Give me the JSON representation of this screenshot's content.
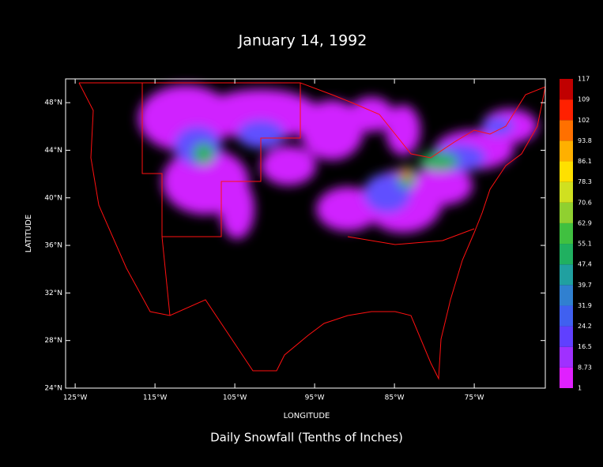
{
  "map": {
    "title": "January 14, 1992",
    "subtitle": "Daily Snowfall (Tenths of Inches)",
    "x_label": "LONGITUDE",
    "y_label": "LATITUDE",
    "xlim": [
      -126.2,
      -66.1
    ],
    "ylim": [
      24,
      50
    ],
    "xticks": [
      {
        "value": -125,
        "label": "125°W"
      },
      {
        "value": -115,
        "label": "115°W"
      },
      {
        "value": -105,
        "label": "105°W"
      },
      {
        "value": -95,
        "label": "95°W"
      },
      {
        "value": -85,
        "label": "85°W"
      },
      {
        "value": -75,
        "label": "75°W"
      }
    ],
    "yticks": [
      {
        "value": 24,
        "label": "24°N"
      },
      {
        "value": 28,
        "label": "28°N"
      },
      {
        "value": 32,
        "label": "32°N"
      },
      {
        "value": 36,
        "label": "36°N"
      },
      {
        "value": 40,
        "label": "40°N"
      },
      {
        "value": 44,
        "label": "44°N"
      },
      {
        "value": 48,
        "label": "48°N"
      }
    ],
    "colorbar": {
      "levels": [
        1,
        8.73,
        16.5,
        24.2,
        31.9,
        39.7,
        47.4,
        55.1,
        62.9,
        70.6,
        78.3,
        86.1,
        93.8,
        102,
        109,
        117
      ],
      "colors": [
        "#e020ff",
        "#a030ff",
        "#6040ff",
        "#4060f0",
        "#3080d0",
        "#20a0a0",
        "#20b060",
        "#40c040",
        "#90d030",
        "#d0e020",
        "#ffe000",
        "#ffb000",
        "#ff7000",
        "#ff2000",
        "#c00000"
      ]
    }
  }
}
